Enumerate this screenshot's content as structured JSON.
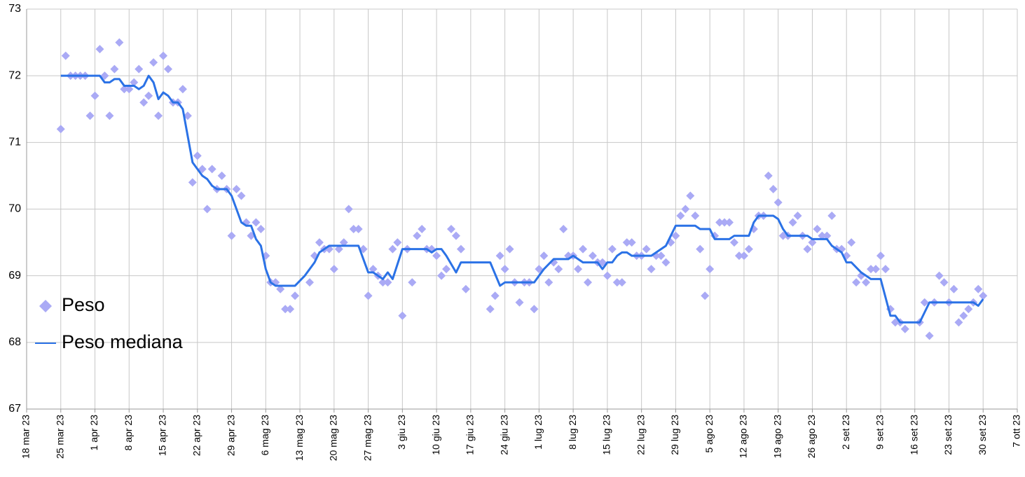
{
  "chart_data": {
    "type": "scatter",
    "xlim": [
      "2023-03-18",
      "2023-10-07"
    ],
    "ylim": [
      67,
      73
    ],
    "yticks": [
      67,
      68,
      69,
      70,
      71,
      72,
      73
    ],
    "xticks": [
      {
        "value": "2023-03-18",
        "label": "18 mar 23"
      },
      {
        "value": "2023-03-25",
        "label": "25 mar 23"
      },
      {
        "value": "2023-04-01",
        "label": "1 apr 23"
      },
      {
        "value": "2023-04-08",
        "label": "8 apr 23"
      },
      {
        "value": "2023-04-15",
        "label": "15 apr 23"
      },
      {
        "value": "2023-04-22",
        "label": "22 apr 23"
      },
      {
        "value": "2023-04-29",
        "label": "29 apr 23"
      },
      {
        "value": "2023-05-06",
        "label": "6 mag 23"
      },
      {
        "value": "2023-05-13",
        "label": "13 mag 23"
      },
      {
        "value": "2023-05-20",
        "label": "20 mag 23"
      },
      {
        "value": "2023-05-27",
        "label": "27 mag 23"
      },
      {
        "value": "2023-06-03",
        "label": "3 giu 23"
      },
      {
        "value": "2023-06-10",
        "label": "10 giu 23"
      },
      {
        "value": "2023-06-17",
        "label": "17 giu 23"
      },
      {
        "value": "2023-06-24",
        "label": "24 giu 23"
      },
      {
        "value": "2023-07-01",
        "label": "1 lug 23"
      },
      {
        "value": "2023-07-08",
        "label": "8 lug 23"
      },
      {
        "value": "2023-07-15",
        "label": "15 lug 23"
      },
      {
        "value": "2023-07-22",
        "label": "22 lug 23"
      },
      {
        "value": "2023-07-29",
        "label": "29 lug 23"
      },
      {
        "value": "2023-08-05",
        "label": "5 ago 23"
      },
      {
        "value": "2023-08-12",
        "label": "12 ago 23"
      },
      {
        "value": "2023-08-19",
        "label": "19 ago 23"
      },
      {
        "value": "2023-08-26",
        "label": "26 ago 23"
      },
      {
        "value": "2023-09-02",
        "label": "2 set 23"
      },
      {
        "value": "2023-09-09",
        "label": "9 set 23"
      },
      {
        "value": "2023-09-16",
        "label": "16 set 23"
      },
      {
        "value": "2023-09-23",
        "label": "23 set 23"
      },
      {
        "value": "2023-09-30",
        "label": "30 set 23"
      },
      {
        "value": "2023-10-07",
        "label": "7 ott 23"
      }
    ],
    "grid": true,
    "legend": "left",
    "series": [
      {
        "name": "Peso",
        "type": "scatter",
        "color": "#aaaaf5",
        "x": [
          "2023-03-25",
          "2023-03-26",
          "2023-03-27",
          "2023-03-28",
          "2023-03-29",
          "2023-03-30",
          "2023-03-31",
          "2023-04-01",
          "2023-04-02",
          "2023-04-03",
          "2023-04-04",
          "2023-04-05",
          "2023-04-06",
          "2023-04-07",
          "2023-04-08",
          "2023-04-09",
          "2023-04-10",
          "2023-04-11",
          "2023-04-12",
          "2023-04-13",
          "2023-04-14",
          "2023-04-15",
          "2023-04-16",
          "2023-04-17",
          "2023-04-18",
          "2023-04-19",
          "2023-04-20",
          "2023-04-21",
          "2023-04-22",
          "2023-04-23",
          "2023-04-24",
          "2023-04-25",
          "2023-04-26",
          "2023-04-27",
          "2023-04-28",
          "2023-04-29",
          "2023-04-30",
          "2023-05-01",
          "2023-05-02",
          "2023-05-03",
          "2023-05-04",
          "2023-05-05",
          "2023-05-06",
          "2023-05-07",
          "2023-05-08",
          "2023-05-09",
          "2023-05-10",
          "2023-05-11",
          "2023-05-12",
          "2023-05-15",
          "2023-05-16",
          "2023-05-17",
          "2023-05-18",
          "2023-05-19",
          "2023-05-20",
          "2023-05-21",
          "2023-05-22",
          "2023-05-23",
          "2023-05-24",
          "2023-05-25",
          "2023-05-26",
          "2023-05-27",
          "2023-05-28",
          "2023-05-29",
          "2023-05-30",
          "2023-05-31",
          "2023-06-01",
          "2023-06-02",
          "2023-06-03",
          "2023-06-04",
          "2023-06-05",
          "2023-06-06",
          "2023-06-07",
          "2023-06-08",
          "2023-06-09",
          "2023-06-10",
          "2023-06-11",
          "2023-06-12",
          "2023-06-13",
          "2023-06-14",
          "2023-06-15",
          "2023-06-16",
          "2023-06-21",
          "2023-06-22",
          "2023-06-23",
          "2023-06-24",
          "2023-06-25",
          "2023-06-26",
          "2023-06-27",
          "2023-06-28",
          "2023-06-29",
          "2023-06-30",
          "2023-07-01",
          "2023-07-02",
          "2023-07-03",
          "2023-07-04",
          "2023-07-05",
          "2023-07-06",
          "2023-07-07",
          "2023-07-08",
          "2023-07-09",
          "2023-07-10",
          "2023-07-11",
          "2023-07-12",
          "2023-07-13",
          "2023-07-14",
          "2023-07-15",
          "2023-07-16",
          "2023-07-17",
          "2023-07-18",
          "2023-07-19",
          "2023-07-20",
          "2023-07-21",
          "2023-07-22",
          "2023-07-23",
          "2023-07-24",
          "2023-07-25",
          "2023-07-26",
          "2023-07-27",
          "2023-07-28",
          "2023-07-29",
          "2023-07-30",
          "2023-07-31",
          "2023-08-01",
          "2023-08-02",
          "2023-08-03",
          "2023-08-04",
          "2023-08-05",
          "2023-08-06",
          "2023-08-07",
          "2023-08-08",
          "2023-08-09",
          "2023-08-10",
          "2023-08-11",
          "2023-08-12",
          "2023-08-13",
          "2023-08-14",
          "2023-08-15",
          "2023-08-16",
          "2023-08-17",
          "2023-08-18",
          "2023-08-19",
          "2023-08-20",
          "2023-08-21",
          "2023-08-22",
          "2023-08-23",
          "2023-08-24",
          "2023-08-25",
          "2023-08-26",
          "2023-08-27",
          "2023-08-28",
          "2023-08-29",
          "2023-08-30",
          "2023-08-31",
          "2023-09-01",
          "2023-09-02",
          "2023-09-03",
          "2023-09-04",
          "2023-09-05",
          "2023-09-06",
          "2023-09-07",
          "2023-09-08",
          "2023-09-09",
          "2023-09-10",
          "2023-09-11",
          "2023-09-12",
          "2023-09-13",
          "2023-09-14",
          "2023-09-17",
          "2023-09-18",
          "2023-09-19",
          "2023-09-20",
          "2023-09-21",
          "2023-09-22",
          "2023-09-23",
          "2023-09-24",
          "2023-09-25",
          "2023-09-26",
          "2023-09-27",
          "2023-09-28",
          "2023-09-29",
          "2023-09-30"
        ],
        "values": [
          71.2,
          72.3,
          72.0,
          72.0,
          72.0,
          72.0,
          71.4,
          71.7,
          72.4,
          72.0,
          71.4,
          72.1,
          72.5,
          71.8,
          71.8,
          71.9,
          72.1,
          71.6,
          71.7,
          72.2,
          71.4,
          72.3,
          72.1,
          71.6,
          71.6,
          71.8,
          71.4,
          70.4,
          70.8,
          70.6,
          70.0,
          70.6,
          70.3,
          70.5,
          70.3,
          69.6,
          70.3,
          70.2,
          69.8,
          69.6,
          69.8,
          69.7,
          69.3,
          68.9,
          68.9,
          68.8,
          68.5,
          68.5,
          68.7,
          68.9,
          69.3,
          69.5,
          69.4,
          69.4,
          69.1,
          69.4,
          69.5,
          70.0,
          69.7,
          69.7,
          69.4,
          68.7,
          69.1,
          69.0,
          68.9,
          68.9,
          69.4,
          69.5,
          68.4,
          69.4,
          68.9,
          69.6,
          69.7,
          69.4,
          69.4,
          69.3,
          69.0,
          69.1,
          69.7,
          69.6,
          69.4,
          68.8,
          68.5,
          68.7,
          69.3,
          69.1,
          69.4,
          68.9,
          68.6,
          68.9,
          68.9,
          68.5,
          69.1,
          69.3,
          68.9,
          69.2,
          69.1,
          69.7,
          69.3,
          69.3,
          69.1,
          69.4,
          68.9,
          69.3,
          69.2,
          69.2,
          69.0,
          69.4,
          68.9,
          68.9,
          69.5,
          69.5,
          69.3,
          69.3,
          69.4,
          69.1,
          69.3,
          69.3,
          69.2,
          69.5,
          69.6,
          69.9,
          70.0,
          70.2,
          69.9,
          69.4,
          68.7,
          69.1,
          69.6,
          69.8,
          69.8,
          69.8,
          69.5,
          69.3,
          69.3,
          69.4,
          69.7,
          69.9,
          69.9,
          70.5,
          70.3,
          70.1,
          69.6,
          69.6,
          69.8,
          69.9,
          69.6,
          69.4,
          69.5,
          69.7,
          69.6,
          69.6,
          69.9,
          69.4,
          69.4,
          69.3,
          69.5,
          68.9,
          69.0,
          68.9,
          69.1,
          69.1,
          69.3,
          69.1,
          68.5,
          68.3,
          68.3,
          68.2,
          68.3,
          68.6,
          68.1,
          68.6,
          69.0,
          68.9,
          68.6,
          68.8,
          68.3,
          68.4,
          68.5,
          68.6,
          68.8,
          68.7
        ]
      },
      {
        "name": "Peso mediana",
        "type": "line",
        "color": "#2b72e6",
        "x": [
          "2023-03-25",
          "2023-04-02",
          "2023-04-03",
          "2023-04-04",
          "2023-04-05",
          "2023-04-06",
          "2023-04-07",
          "2023-04-09",
          "2023-04-10",
          "2023-04-11",
          "2023-04-12",
          "2023-04-13",
          "2023-04-14",
          "2023-04-15",
          "2023-04-16",
          "2023-04-17",
          "2023-04-18",
          "2023-04-19",
          "2023-04-20",
          "2023-04-21",
          "2023-04-22",
          "2023-04-23",
          "2023-04-24",
          "2023-04-25",
          "2023-04-26",
          "2023-04-28",
          "2023-04-29",
          "2023-04-30",
          "2023-05-01",
          "2023-05-02",
          "2023-05-03",
          "2023-05-04",
          "2023-05-05",
          "2023-05-06",
          "2023-05-07",
          "2023-05-08",
          "2023-05-12",
          "2023-05-14",
          "2023-05-16",
          "2023-05-17",
          "2023-05-18",
          "2023-05-19",
          "2023-05-25",
          "2023-05-27",
          "2023-05-28",
          "2023-05-30",
          "2023-05-31",
          "2023-06-01",
          "2023-06-03",
          "2023-06-08",
          "2023-06-09",
          "2023-06-10",
          "2023-06-11",
          "2023-06-12",
          "2023-06-14",
          "2023-06-15",
          "2023-06-21",
          "2023-06-23",
          "2023-06-24",
          "2023-06-30",
          "2023-07-01",
          "2023-07-02",
          "2023-07-04",
          "2023-07-07",
          "2023-07-08",
          "2023-07-09",
          "2023-07-10",
          "2023-07-13",
          "2023-07-14",
          "2023-07-15",
          "2023-07-16",
          "2023-07-17",
          "2023-07-18",
          "2023-07-19",
          "2023-07-20",
          "2023-07-24",
          "2023-07-25",
          "2023-07-27",
          "2023-07-28",
          "2023-07-29",
          "2023-08-02",
          "2023-08-03",
          "2023-08-05",
          "2023-08-06",
          "2023-08-09",
          "2023-08-10",
          "2023-08-13",
          "2023-08-14",
          "2023-08-15",
          "2023-08-18",
          "2023-08-19",
          "2023-08-20",
          "2023-08-21",
          "2023-08-25",
          "2023-08-26",
          "2023-08-29",
          "2023-08-30",
          "2023-08-31",
          "2023-09-01",
          "2023-09-02",
          "2023-09-03",
          "2023-09-05",
          "2023-09-07",
          "2023-09-09",
          "2023-09-11",
          "2023-09-12",
          "2023-09-13",
          "2023-09-17",
          "2023-09-18",
          "2023-09-19",
          "2023-09-28",
          "2023-09-29",
          "2023-09-30"
        ],
        "values": [
          72.0,
          72.0,
          71.9,
          71.9,
          71.95,
          71.95,
          71.85,
          71.85,
          71.8,
          71.85,
          72.0,
          71.9,
          71.65,
          71.75,
          71.7,
          71.6,
          71.6,
          71.5,
          71.1,
          70.7,
          70.6,
          70.5,
          70.45,
          70.35,
          70.3,
          70.3,
          70.2,
          70.0,
          69.8,
          69.75,
          69.75,
          69.55,
          69.45,
          69.1,
          68.9,
          68.85,
          68.85,
          69.0,
          69.2,
          69.35,
          69.4,
          69.45,
          69.45,
          69.05,
          69.05,
          68.95,
          69.05,
          68.95,
          69.4,
          69.4,
          69.35,
          69.4,
          69.4,
          69.3,
          69.05,
          69.2,
          69.2,
          68.85,
          68.9,
          68.9,
          69.0,
          69.1,
          69.25,
          69.25,
          69.3,
          69.25,
          69.2,
          69.2,
          69.1,
          69.2,
          69.2,
          69.3,
          69.35,
          69.35,
          69.3,
          69.3,
          69.35,
          69.45,
          69.6,
          69.75,
          69.75,
          69.7,
          69.7,
          69.55,
          69.55,
          69.6,
          69.6,
          69.8,
          69.9,
          69.9,
          69.85,
          69.7,
          69.6,
          69.6,
          69.55,
          69.55,
          69.45,
          69.4,
          69.35,
          69.2,
          69.2,
          69.05,
          68.95,
          68.95,
          68.4,
          68.4,
          68.3,
          68.3,
          68.45,
          68.6,
          68.6,
          68.55,
          68.65
        ]
      }
    ]
  }
}
